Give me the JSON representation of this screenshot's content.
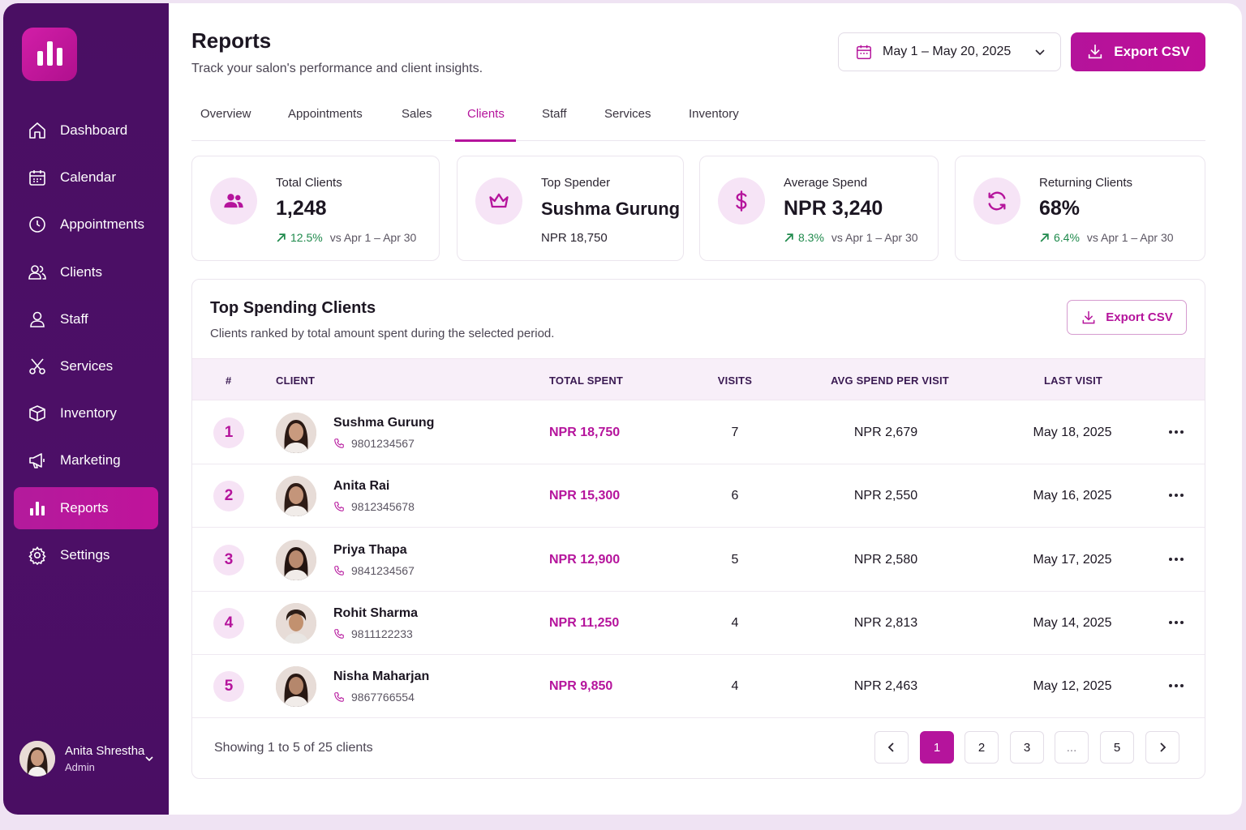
{
  "sidebar": {
    "items": [
      {
        "label": "Dashboard",
        "icon": "home-icon"
      },
      {
        "label": "Calendar",
        "icon": "calendar-icon"
      },
      {
        "label": "Appointments",
        "icon": "clock-icon"
      },
      {
        "label": "Clients",
        "icon": "users-icon"
      },
      {
        "label": "Staff",
        "icon": "user-icon"
      },
      {
        "label": "Services",
        "icon": "scissors-icon"
      },
      {
        "label": "Inventory",
        "icon": "box-icon"
      },
      {
        "label": "Marketing",
        "icon": "megaphone-icon"
      },
      {
        "label": "Reports",
        "icon": "bar-chart-icon",
        "active": true
      },
      {
        "label": "Settings",
        "icon": "gear-icon"
      }
    ],
    "user": {
      "name": "Anita Shrestha",
      "role": "Admin"
    }
  },
  "header": {
    "title": "Reports",
    "subtitle": "Track your salon's performance and client insights.",
    "date_range": "May 1 – May 20, 2025",
    "export_label": "Export CSV"
  },
  "tabs": [
    "Overview",
    "Appointments",
    "Sales",
    "Clients",
    "Staff",
    "Services",
    "Inventory"
  ],
  "active_tab": "Clients",
  "stats": [
    {
      "label": "Total Clients",
      "value": "1,248",
      "change": "12.5%",
      "compare": "vs Apr 1 – Apr 30",
      "icon": "users-icon"
    },
    {
      "label": "Top Spender",
      "value": "Sushma Gurung",
      "detail": "NPR 18,750",
      "icon": "crown-icon"
    },
    {
      "label": "Average Spend",
      "value": "NPR 3,240",
      "change": "8.3%",
      "compare": "vs Apr 1 – Apr 30",
      "icon": "dollar-icon"
    },
    {
      "label": "Returning Clients",
      "value": "68%",
      "change": "6.4%",
      "compare": "vs Apr 1 – Apr 30",
      "icon": "refresh-icon"
    }
  ],
  "table": {
    "title": "Top Spending Clients",
    "subtitle": "Clients ranked by total amount spent during the selected period.",
    "export_label": "Export CSV",
    "columns": [
      "#",
      "CLIENT",
      "TOTAL SPENT",
      "VISITS",
      "AVG SPEND PER VISIT",
      "LAST VISIT"
    ],
    "rows": [
      {
        "rank": "1",
        "name": "Sushma Gurung",
        "phone": "9801234567",
        "total": "NPR 18,750",
        "visits": "7",
        "avg": "NPR 2,679",
        "last": "May 18, 2025"
      },
      {
        "rank": "2",
        "name": "Anita Rai",
        "phone": "9812345678",
        "total": "NPR 15,300",
        "visits": "6",
        "avg": "NPR 2,550",
        "last": "May 16, 2025"
      },
      {
        "rank": "3",
        "name": "Priya Thapa",
        "phone": "9841234567",
        "total": "NPR 12,900",
        "visits": "5",
        "avg": "NPR 2,580",
        "last": "May 17, 2025"
      },
      {
        "rank": "4",
        "name": "Rohit Sharma",
        "phone": "9811122233",
        "total": "NPR 11,250",
        "visits": "4",
        "avg": "NPR 2,813",
        "last": "May 14, 2025"
      },
      {
        "rank": "5",
        "name": "Nisha Maharjan",
        "phone": "9867766554",
        "total": "NPR 9,850",
        "visits": "4",
        "avg": "NPR 2,463",
        "last": "May 12, 2025"
      }
    ],
    "showing": "Showing 1 to 5 of 25 clients",
    "pagination": [
      "1",
      "2",
      "3",
      "...",
      "5"
    ],
    "current_page": "1"
  },
  "colors": {
    "accent": "#b5149c",
    "sidebar": "#4a0f63",
    "positive": "#1f8a4c"
  }
}
